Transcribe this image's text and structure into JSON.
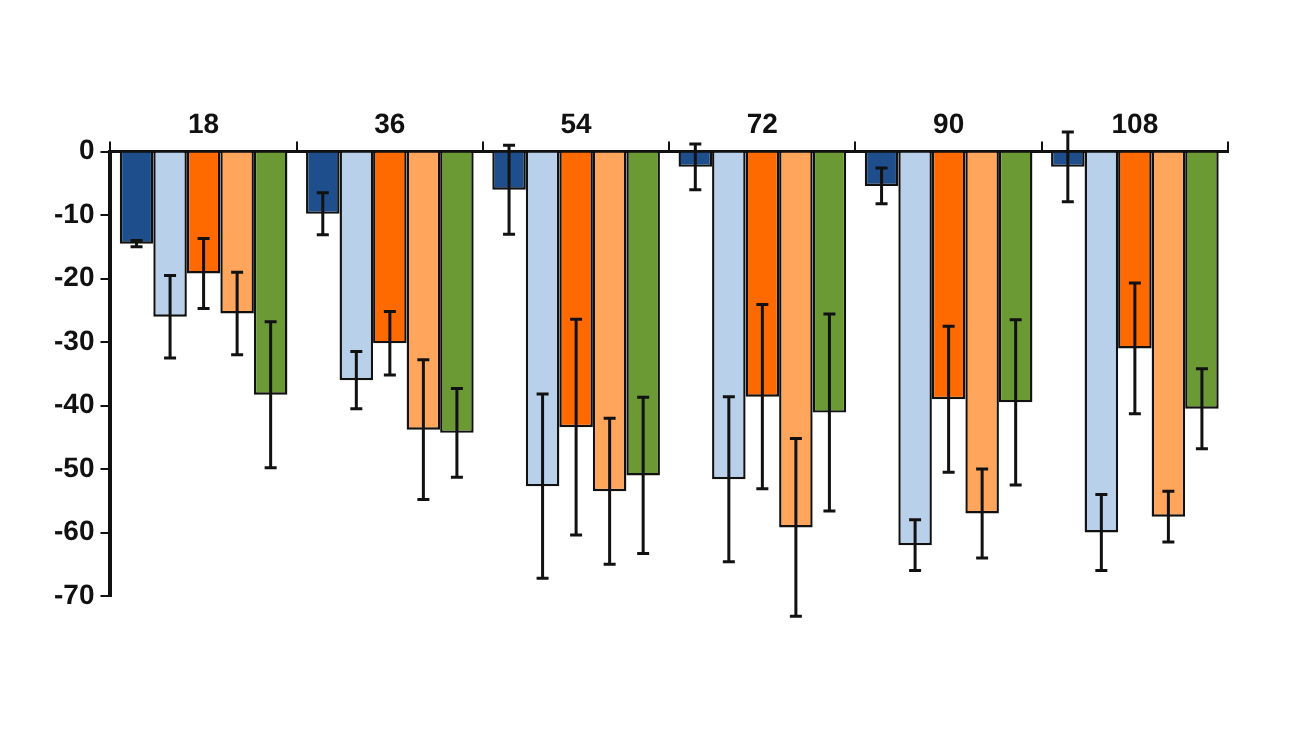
{
  "chart_data": {
    "type": "bar",
    "categories": [
      "18",
      "36",
      "54",
      "72",
      "90",
      "108"
    ],
    "series": [
      {
        "color": "#1f4e8c",
        "values": [
          -14.5,
          -9.8,
          -6,
          -2.4,
          -5.4,
          -2.4
        ],
        "errors": [
          0.5,
          3.3,
          7,
          3.6,
          2.8,
          5.5
        ]
      },
      {
        "color": "#b8d0ea",
        "values": [
          -26,
          -36,
          -52.7,
          -51.6,
          -62,
          -60
        ],
        "errors": [
          6.5,
          4.5,
          14.5,
          13,
          4,
          6
        ]
      },
      {
        "color": "#ff6a00",
        "values": [
          -19.2,
          -30.2,
          -43.4,
          -38.6,
          -39,
          -31
        ],
        "errors": [
          5.5,
          5,
          17,
          14.5,
          11.5,
          10.3
        ]
      },
      {
        "color": "#ffa65c",
        "values": [
          -25.5,
          -43.8,
          -53.5,
          -59.2,
          -57,
          -57.5
        ],
        "errors": [
          6.5,
          11,
          11.5,
          14,
          7,
          4
        ]
      },
      {
        "color": "#6b9a35",
        "values": [
          -38.3,
          -44.3,
          -51,
          -41.1,
          -39.5,
          -40.5
        ],
        "errors": [
          11.5,
          7,
          12.3,
          15.5,
          13,
          6.3
        ]
      }
    ],
    "ylim": [
      -70,
      0
    ],
    "yticks": [
      -70,
      -60,
      -50,
      -40,
      -30,
      -20,
      -10,
      0
    ],
    "grid": false,
    "legend": false
  }
}
